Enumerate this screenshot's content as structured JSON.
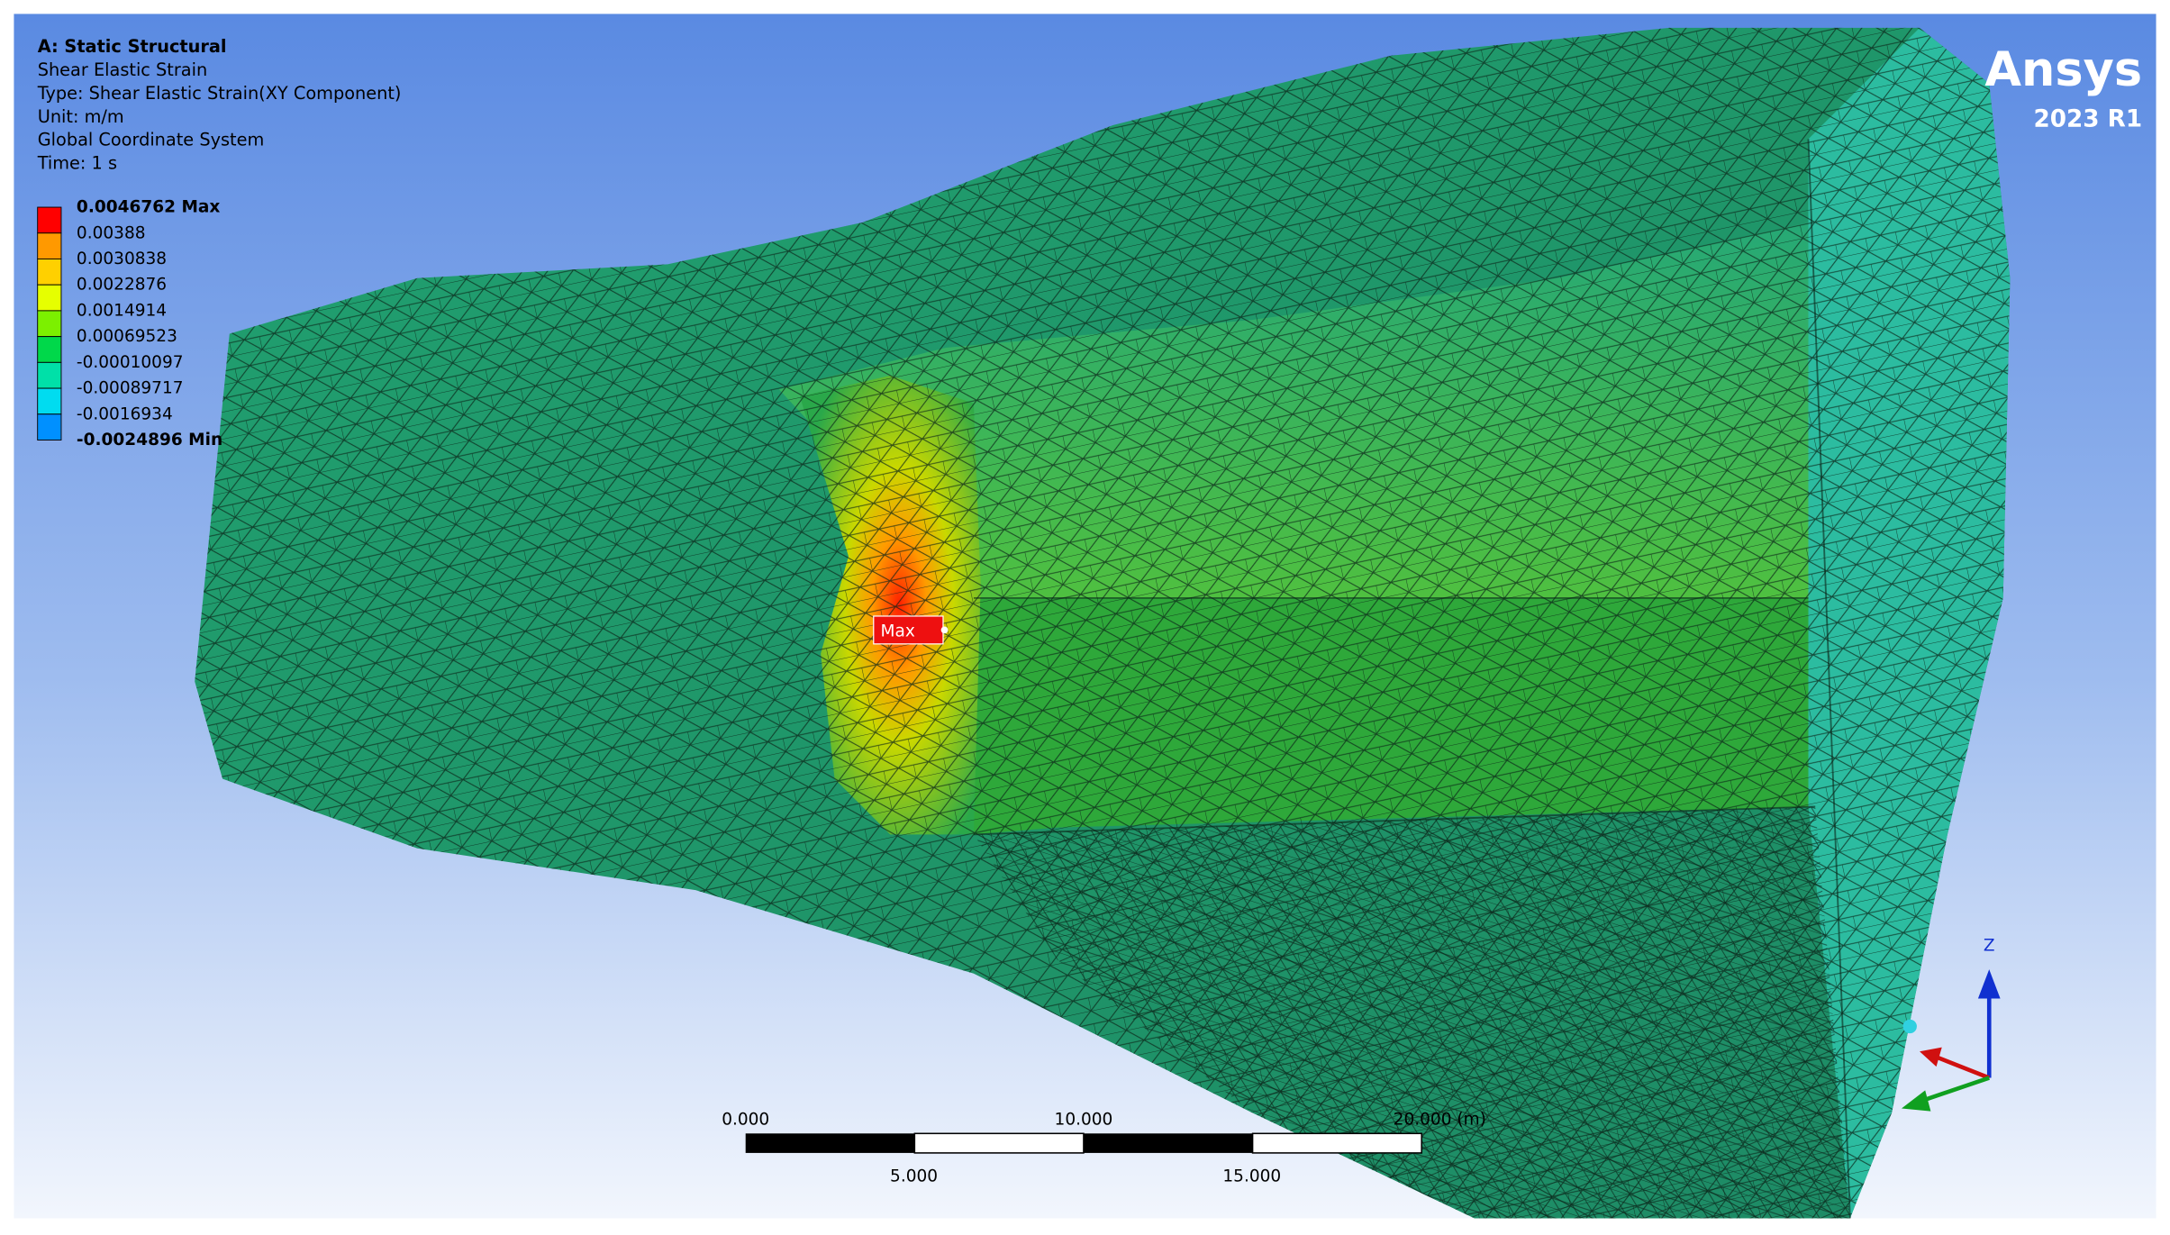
{
  "header": {
    "lines": [
      "A: Static Structural",
      "Shear Elastic Strain",
      "Type: Shear Elastic Strain(XY Component)",
      "Unit: m/m",
      "Global Coordinate System",
      "Time: 1 s"
    ]
  },
  "legend": {
    "labels": [
      "0.0046762 Max",
      "0.00388",
      "0.0030838",
      "0.0022876",
      "0.0014914",
      "0.00069523",
      "-0.00010097",
      "-0.00089717",
      "-0.0016934",
      "-0.0024896 Min"
    ],
    "colors": [
      "#ff0000",
      "#ff9900",
      "#ffd000",
      "#e6ff00",
      "#7cf000",
      "#00d84a",
      "#00e0a8",
      "#00dcf0",
      "#0090ff",
      "#0000ff"
    ]
  },
  "logo": {
    "brand": "Ansys",
    "version": "2023 R1"
  },
  "probe": {
    "label": "Max"
  },
  "scale_bar": {
    "top": [
      "0.000",
      "10.000",
      "20.000 (m)"
    ],
    "bottom": [
      "5.000",
      "15.000"
    ]
  },
  "triad": {
    "z": "Z"
  }
}
